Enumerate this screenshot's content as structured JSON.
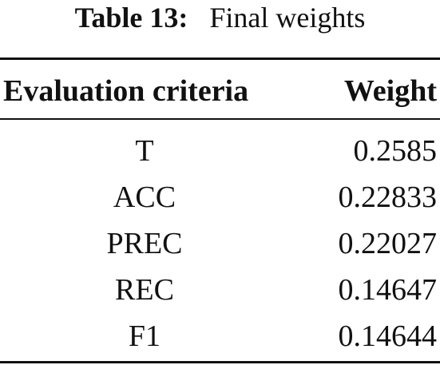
{
  "caption": {
    "label": "Table 13:",
    "text": "Final weights"
  },
  "table": {
    "headers": [
      "Evaluation criteria",
      "Weight"
    ],
    "rows": [
      {
        "criterion": "T",
        "weight": "0.2585"
      },
      {
        "criterion": "ACC",
        "weight": "0.22833"
      },
      {
        "criterion": "PREC",
        "weight": "0.22027"
      },
      {
        "criterion": "REC",
        "weight": "0.14647"
      },
      {
        "criterion": "F1",
        "weight": "0.14644"
      }
    ]
  }
}
